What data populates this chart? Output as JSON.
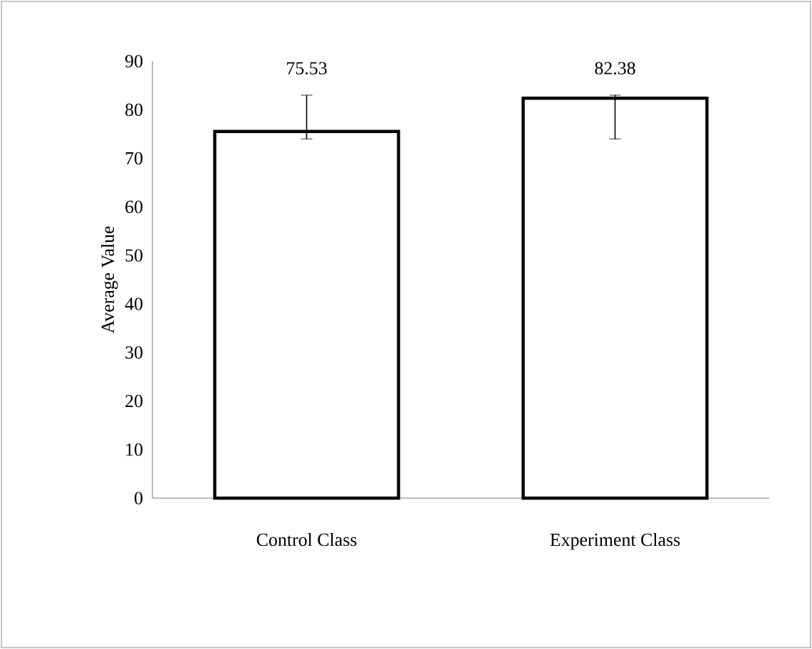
{
  "chart_data": {
    "type": "bar",
    "ylabel": "Average Value",
    "categories": [
      "Control Class",
      "Experiment Class"
    ],
    "values": [
      75.53,
      82.38
    ],
    "color": "#ffffff",
    "errors": [
      [
        74,
        83
      ],
      [
        74,
        83
      ]
    ],
    "value_labels": [
      "75.53",
      "82.38"
    ],
    "ylim": [
      0,
      90
    ],
    "yticks": [
      0,
      10,
      20,
      30,
      40,
      50,
      60,
      70,
      80,
      90
    ],
    "grid": false
  }
}
